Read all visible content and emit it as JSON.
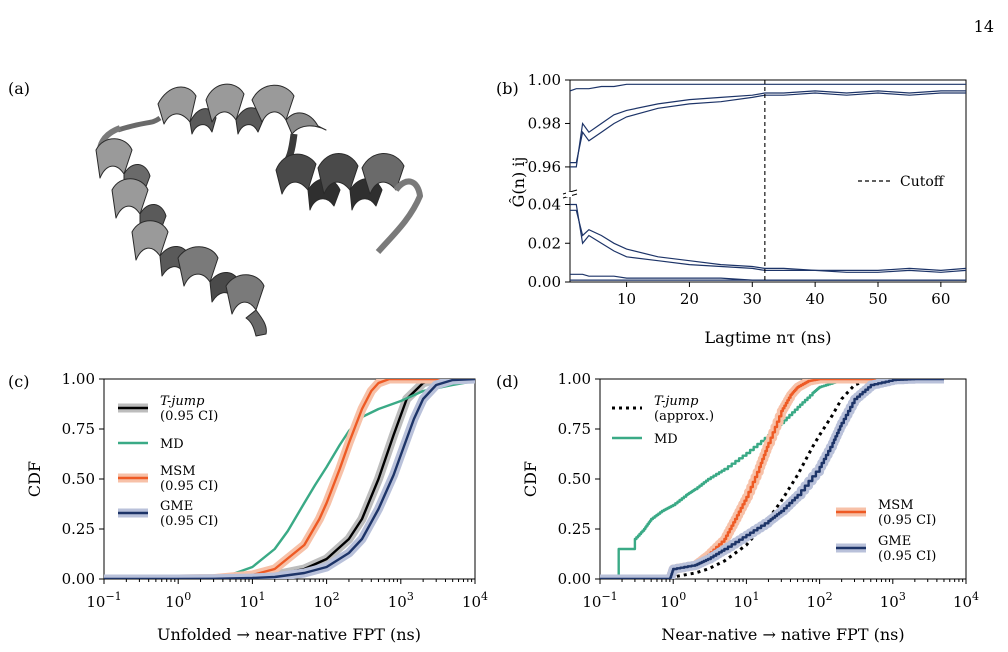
{
  "page_number": "14",
  "colors": {
    "tjump": "#000000",
    "md": "#3aaa86",
    "msm": "#ee5a24",
    "gme": "#1d3468",
    "gme_band": "#b9c1da",
    "msm_band": "#f7c1a8",
    "tjump_band": "#bdbdbd",
    "protein_light": "#9a9a9a",
    "protein_dark": "#4a4a4a"
  },
  "panels": {
    "a": {
      "label": "(a)",
      "image": "protein-structure-cartoon"
    },
    "b": {
      "label": "(b)"
    },
    "c": {
      "label": "(c)"
    },
    "d": {
      "label": "(d)"
    }
  },
  "legend_c": [
    {
      "key": "tjump",
      "line1": "T-jump",
      "line2": "(0.95 CI)"
    },
    {
      "key": "md",
      "line1": "MD",
      "line2": ""
    },
    {
      "key": "msm",
      "line1": "MSM",
      "line2": "(0.95 CI)"
    },
    {
      "key": "gme",
      "line1": "GME",
      "line2": "(0.95 CI)"
    }
  ],
  "legend_d_top": [
    {
      "key": "tjump",
      "line1": "T-jump",
      "line2": "(approx.)"
    },
    {
      "key": "md",
      "line1": "MD",
      "line2": ""
    }
  ],
  "legend_d_bottom": [
    {
      "key": "msm",
      "line1": "MSM",
      "line2": "(0.95 CI)"
    },
    {
      "key": "gme",
      "line1": "GME",
      "line2": "(0.95 CI)"
    }
  ],
  "chart_data": [
    {
      "id": "b",
      "type": "line",
      "xlabel": "Lagtime nτ (ns)",
      "ylabel": "Ĝ(n) ij",
      "xlim": [
        1,
        64
      ],
      "x_ticks": [
        10,
        20,
        30,
        40,
        50,
        60
      ],
      "broken_y_axis": true,
      "upper_ylim": [
        0.948,
        1.0
      ],
      "upper_y_ticks": [
        "0.96",
        "0.98",
        "1.00"
      ],
      "lower_ylim": [
        0.0,
        0.048
      ],
      "lower_y_ticks": [
        "0.00",
        "0.02",
        "0.04"
      ],
      "vline": {
        "x": 32,
        "label": "Cutoff",
        "style": "dashed"
      },
      "series": [
        {
          "x": [
            1,
            2,
            3,
            4,
            6,
            8,
            10,
            15,
            20,
            25,
            30,
            32,
            35,
            40,
            45,
            50,
            55,
            60,
            64
          ],
          "y": [
            0.995,
            0.996,
            0.996,
            0.996,
            0.997,
            0.997,
            0.998,
            0.998,
            0.998,
            0.998,
            0.998,
            0.998,
            0.998,
            0.998,
            0.998,
            0.998,
            0.998,
            0.998,
            0.998
          ]
        },
        {
          "x": [
            1,
            2,
            3,
            4,
            6,
            8,
            10,
            15,
            20,
            25,
            30,
            32,
            35,
            40,
            45,
            50,
            55,
            60,
            64
          ],
          "y": [
            0.962,
            0.962,
            0.976,
            0.972,
            0.976,
            0.98,
            0.983,
            0.987,
            0.989,
            0.99,
            0.992,
            0.993,
            0.993,
            0.994,
            0.993,
            0.994,
            0.993,
            0.994,
            0.994
          ]
        },
        {
          "x": [
            1,
            2,
            3,
            4,
            6,
            8,
            10,
            15,
            20,
            25,
            30,
            32,
            35,
            40,
            45,
            50,
            55,
            60,
            64
          ],
          "y": [
            0.96,
            0.96,
            0.98,
            0.976,
            0.98,
            0.984,
            0.986,
            0.989,
            0.991,
            0.992,
            0.993,
            0.994,
            0.994,
            0.995,
            0.994,
            0.995,
            0.994,
            0.995,
            0.995
          ]
        },
        {
          "x": [
            1,
            2,
            3,
            4,
            6,
            8,
            10,
            15,
            20,
            25,
            30,
            32,
            35,
            40,
            45,
            50,
            55,
            60,
            64
          ],
          "y": [
            0.04,
            0.04,
            0.02,
            0.024,
            0.02,
            0.016,
            0.013,
            0.011,
            0.009,
            0.008,
            0.007,
            0.006,
            0.006,
            0.006,
            0.005,
            0.005,
            0.006,
            0.005,
            0.006
          ]
        },
        {
          "x": [
            1,
            2,
            3,
            4,
            6,
            8,
            10,
            15,
            20,
            25,
            30,
            32,
            35,
            40,
            45,
            50,
            55,
            60,
            64
          ],
          "y": [
            0.037,
            0.037,
            0.024,
            0.027,
            0.024,
            0.02,
            0.017,
            0.013,
            0.011,
            0.009,
            0.008,
            0.007,
            0.007,
            0.006,
            0.006,
            0.006,
            0.007,
            0.006,
            0.007
          ]
        },
        {
          "x": [
            1,
            2,
            3,
            4,
            6,
            8,
            10,
            15,
            20,
            25,
            30,
            32,
            35,
            40,
            45,
            50,
            55,
            60,
            64
          ],
          "y": [
            0.004,
            0.004,
            0.004,
            0.003,
            0.003,
            0.003,
            0.002,
            0.002,
            0.002,
            0.002,
            0.001,
            0.001,
            0.001,
            0.001,
            0.001,
            0.001,
            0.001,
            0.001,
            0.001
          ]
        },
        {
          "x": [
            1,
            2,
            3,
            4,
            6,
            8,
            10,
            15,
            20,
            25,
            30,
            32,
            35,
            40,
            45,
            50,
            55,
            60,
            64
          ],
          "y": [
            0.001,
            0.001,
            0.001,
            0.001,
            0.001,
            0.001,
            0.001,
            0.001,
            0.001,
            0.001,
            0.001,
            0.001,
            0.001,
            0.001,
            0.001,
            0.001,
            0.001,
            0.001,
            0.001
          ]
        }
      ]
    },
    {
      "id": "c",
      "type": "line",
      "xlabel": "Unfolded → near-native FPT (ns)",
      "ylabel": "CDF",
      "xscale": "log",
      "xlim": [
        0.1,
        10000
      ],
      "x_ticks": [
        "10−1",
        "100",
        "101",
        "102",
        "103",
        "104"
      ],
      "ylim": [
        0,
        1
      ],
      "y_ticks": [
        "0.00",
        "0.25",
        "0.50",
        "0.75",
        "1.00"
      ],
      "series": [
        {
          "key": "tjump",
          "name": "T-jump",
          "band": true,
          "x": [
            0.1,
            1,
            3,
            10,
            20,
            50,
            100,
            200,
            300,
            500,
            800,
            1200,
            2000,
            3000,
            5000,
            10000
          ],
          "y": [
            0,
            0.0,
            0.002,
            0.01,
            0.02,
            0.05,
            0.1,
            0.2,
            0.3,
            0.5,
            0.72,
            0.9,
            0.98,
            1.0,
            1.0,
            1.0
          ]
        },
        {
          "key": "md",
          "name": "MD",
          "band": false,
          "x": [
            0.1,
            1,
            3,
            5,
            10,
            20,
            30,
            50,
            70,
            100,
            150,
            200,
            300,
            500,
            1000,
            2000,
            5000,
            10000
          ],
          "y": [
            0,
            0.0,
            0.005,
            0.02,
            0.06,
            0.15,
            0.24,
            0.38,
            0.47,
            0.56,
            0.67,
            0.74,
            0.81,
            0.85,
            0.89,
            0.94,
            0.97,
            0.99
          ]
        },
        {
          "key": "msm",
          "name": "MSM",
          "band": true,
          "x": [
            0.1,
            1,
            3,
            10,
            20,
            50,
            80,
            100,
            150,
            200,
            300,
            400,
            500,
            700,
            1000,
            10000
          ],
          "y": [
            0,
            0.0,
            0.002,
            0.02,
            0.05,
            0.17,
            0.3,
            0.38,
            0.55,
            0.68,
            0.85,
            0.94,
            0.98,
            1.0,
            1.0,
            1.0
          ]
        },
        {
          "key": "gme",
          "name": "GME",
          "band": true,
          "x": [
            0.1,
            1,
            3,
            10,
            20,
            50,
            100,
            200,
            300,
            500,
            800,
            1000,
            1500,
            2000,
            3000,
            5000,
            10000
          ],
          "y": [
            0,
            0.0,
            0.001,
            0.005,
            0.01,
            0.03,
            0.06,
            0.13,
            0.2,
            0.35,
            0.52,
            0.62,
            0.8,
            0.9,
            0.97,
            0.995,
            1.0
          ]
        }
      ]
    },
    {
      "id": "d",
      "type": "line",
      "xlabel": "Near-native → native FPT (ns)",
      "ylabel": "CDF",
      "xscale": "log",
      "xlim": [
        0.1,
        10000
      ],
      "x_ticks": [
        "10−1",
        "100",
        "101",
        "102",
        "103",
        "104"
      ],
      "ylim": [
        0,
        1
      ],
      "y_ticks": [
        "0.00",
        "0.25",
        "0.50",
        "0.75",
        "1.00"
      ],
      "series": [
        {
          "key": "tjump",
          "name": "T-jump",
          "band": false,
          "dashed": true,
          "x": [
            0.1,
            0.5,
            1,
            2,
            3,
            5,
            10,
            20,
            30,
            50,
            80,
            100,
            150,
            200,
            300,
            500,
            1000
          ],
          "y": [
            0,
            0.002,
            0.01,
            0.03,
            0.05,
            0.09,
            0.17,
            0.3,
            0.39,
            0.52,
            0.66,
            0.72,
            0.82,
            0.9,
            0.97,
            1.0,
            1.0
          ]
        },
        {
          "key": "md",
          "name": "MD",
          "band": false,
          "step": true,
          "x": [
            0.1,
            0.18,
            0.18,
            0.3,
            0.3,
            0.4,
            0.5,
            0.7,
            1,
            1.5,
            2,
            3,
            5,
            10,
            20,
            30,
            50,
            80,
            100,
            150,
            200,
            300,
            500,
            1000
          ],
          "y": [
            0,
            0,
            0.15,
            0.15,
            0.2,
            0.25,
            0.3,
            0.34,
            0.37,
            0.42,
            0.45,
            0.5,
            0.55,
            0.63,
            0.72,
            0.78,
            0.86,
            0.93,
            0.96,
            0.98,
            0.99,
            1.0,
            1.0,
            1.0
          ]
        },
        {
          "key": "msm",
          "name": "MSM",
          "band": true,
          "step": true,
          "x": [
            0.1,
            0.9,
            1,
            2,
            3,
            5,
            7,
            10,
            15,
            20,
            30,
            40,
            50,
            70,
            100,
            150,
            200,
            300,
            1000
          ],
          "y": [
            0,
            0,
            0.05,
            0.07,
            0.12,
            0.2,
            0.3,
            0.41,
            0.56,
            0.68,
            0.84,
            0.92,
            0.96,
            0.99,
            1.0,
            1.0,
            1.0,
            1.0,
            1.0
          ]
        },
        {
          "key": "gme",
          "name": "GME",
          "band": true,
          "step": true,
          "x": [
            0.1,
            0.9,
            1,
            2,
            3,
            5,
            10,
            20,
            30,
            50,
            100,
            150,
            200,
            300,
            500,
            1000,
            2000,
            5000
          ],
          "y": [
            0,
            0,
            0.05,
            0.07,
            0.1,
            0.15,
            0.22,
            0.29,
            0.34,
            0.42,
            0.56,
            0.68,
            0.78,
            0.9,
            0.97,
            0.995,
            1.0,
            1.0
          ]
        }
      ]
    }
  ]
}
